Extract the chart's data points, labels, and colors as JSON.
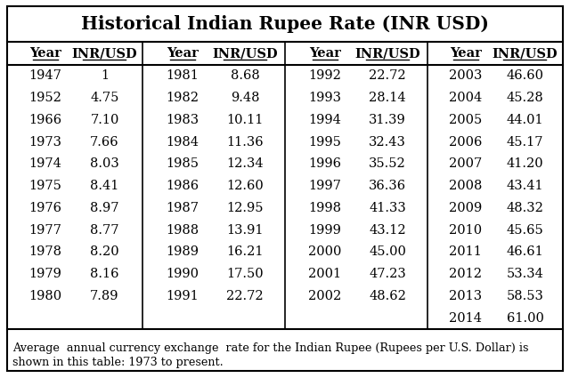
{
  "title": "Historical Indian Rupee Rate (INR USD)",
  "columns": [
    {
      "years": [
        "1947",
        "1952",
        "1966",
        "1973",
        "1974",
        "1975",
        "1976",
        "1977",
        "1978",
        "1979",
        "1980"
      ],
      "rates": [
        "1",
        "4.75",
        "7.10",
        "7.66",
        "8.03",
        "8.41",
        "8.97",
        "8.77",
        "8.20",
        "8.16",
        "7.89"
      ]
    },
    {
      "years": [
        "1981",
        "1982",
        "1983",
        "1984",
        "1985",
        "1986",
        "1987",
        "1988",
        "1989",
        "1990",
        "1991"
      ],
      "rates": [
        "8.68",
        "9.48",
        "10.11",
        "11.36",
        "12.34",
        "12.60",
        "12.95",
        "13.91",
        "16.21",
        "17.50",
        "22.72"
      ]
    },
    {
      "years": [
        "1992",
        "1993",
        "1994",
        "1995",
        "1996",
        "1997",
        "1998",
        "1999",
        "2000",
        "2001",
        "2002"
      ],
      "rates": [
        "22.72",
        "28.14",
        "31.39",
        "32.43",
        "35.52",
        "36.36",
        "41.33",
        "43.12",
        "45.00",
        "47.23",
        "48.62"
      ]
    },
    {
      "years": [
        "2003",
        "2004",
        "2005",
        "2006",
        "2007",
        "2008",
        "2009",
        "2010",
        "2011",
        "2012",
        "2013",
        "2014"
      ],
      "rates": [
        "46.60",
        "45.28",
        "44.01",
        "45.17",
        "41.20",
        "43.41",
        "48.32",
        "45.65",
        "46.61",
        "53.34",
        "58.53",
        "61.00"
      ]
    }
  ],
  "footer_line1": "Average  annual currency exchange  rate for the Indian Rupee (Rupees per U.S. Dollar) is",
  "footer_line2": "shown in this table: 1973 to present.",
  "bg_color": "#ffffff",
  "border_color": "#000000",
  "header_label_year": "Year",
  "header_label_rate": "INR/USD",
  "title_fontsize": 14.5,
  "header_fontsize": 10.5,
  "data_fontsize": 10.5,
  "footer_fontsize": 9.2
}
